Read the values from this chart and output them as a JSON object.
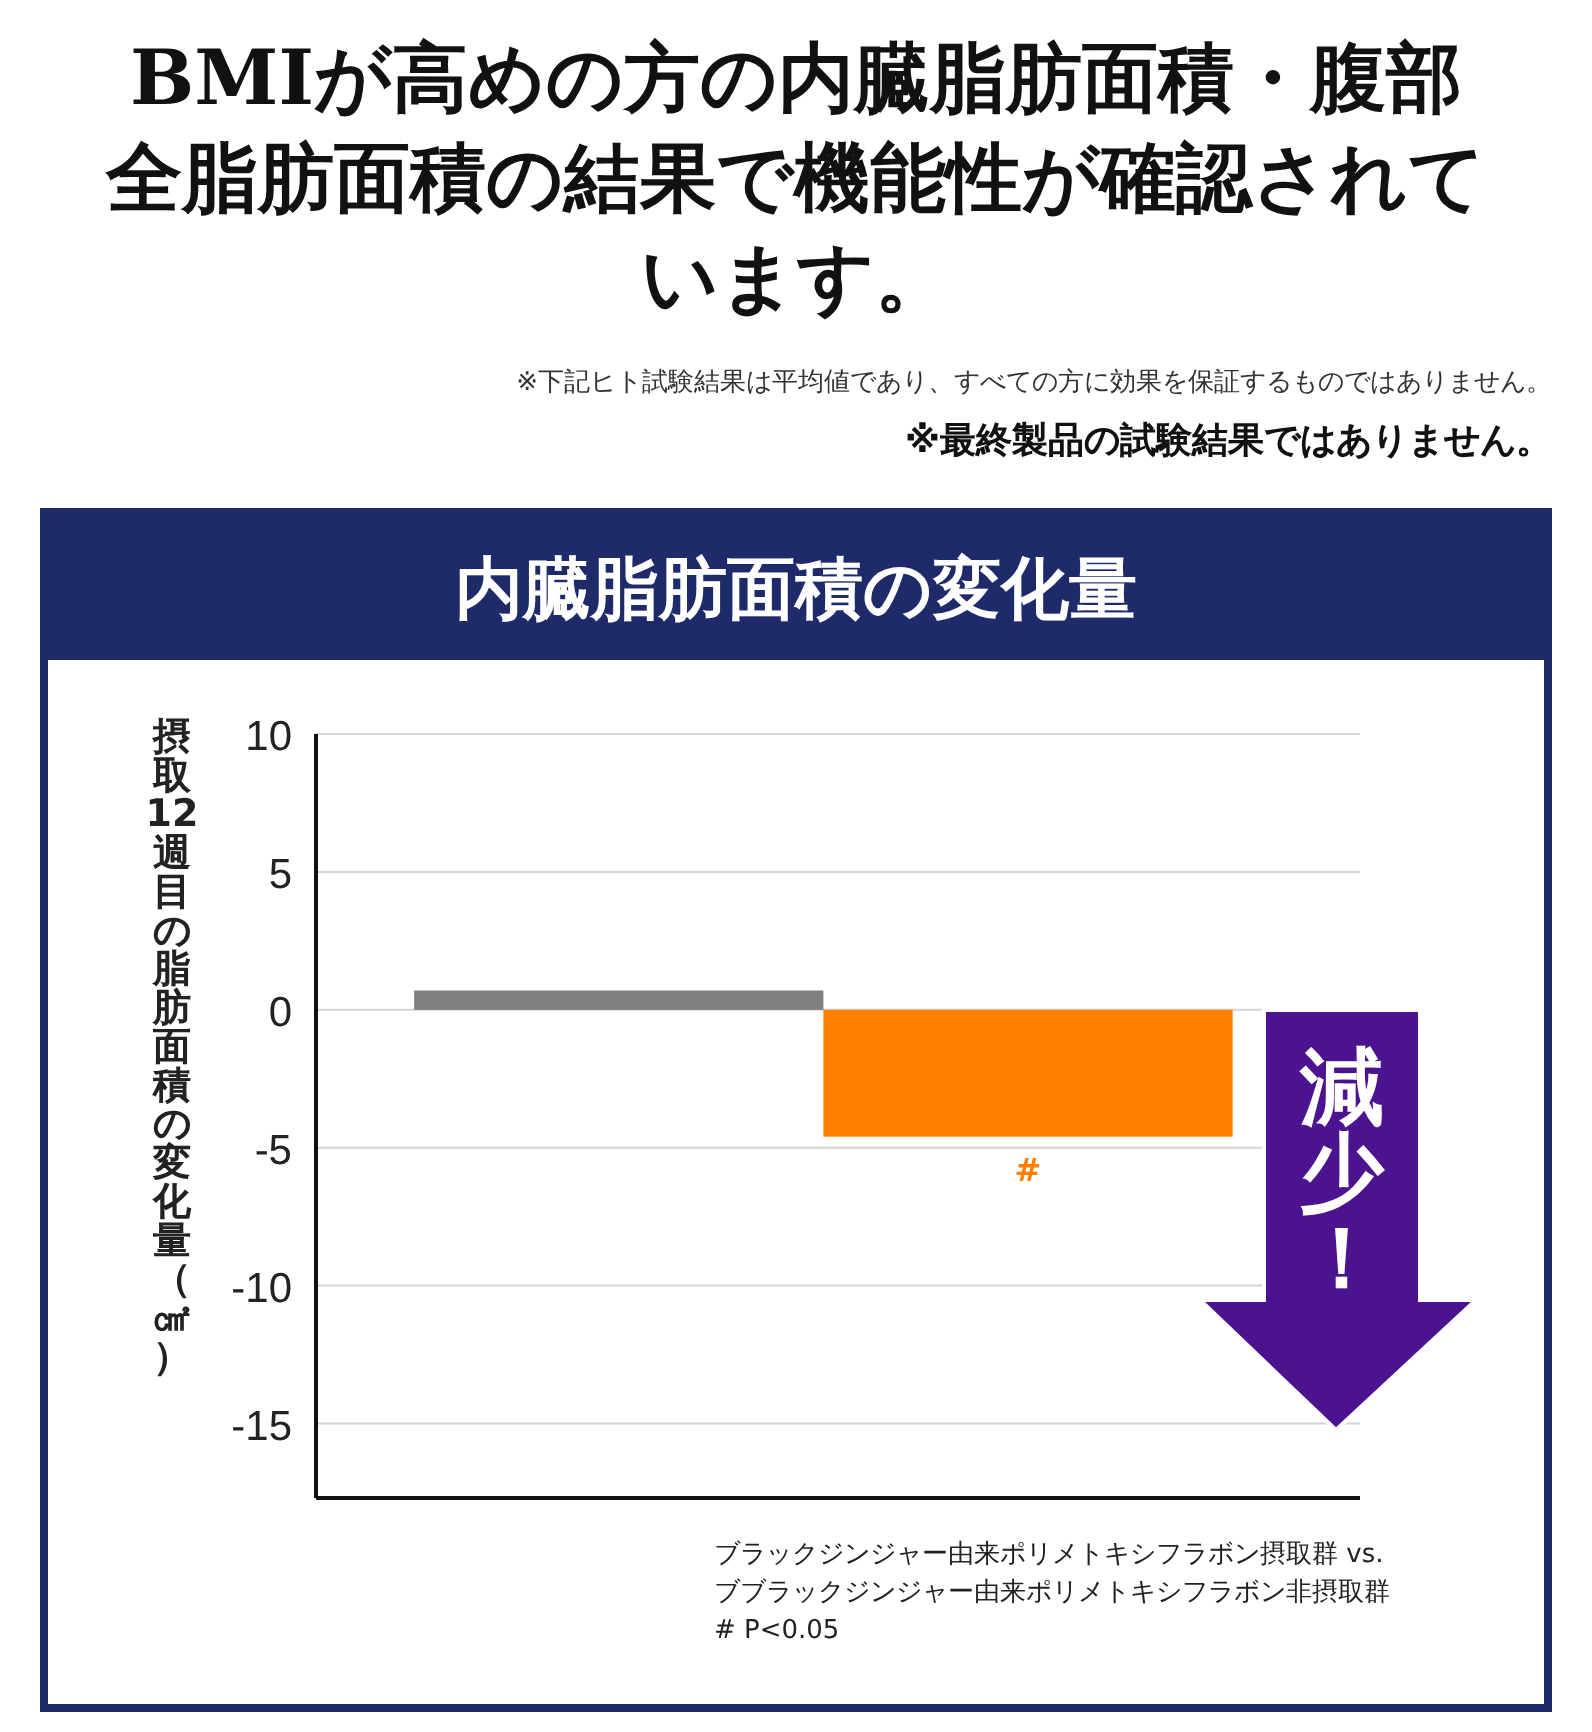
{
  "chart_data": {
    "type": "bar",
    "title": "BMIが高めの方の内臓脂肪面積・腹部全脂肪面積の結果で機能性が確認されています。",
    "subtitle": "内臓脂肪面積の変化量",
    "ylabel": "摂取12週目の脂肪面積の変化量（㎠）",
    "categories": [
      null,
      null
    ],
    "values": [
      0.7,
      -4.6
    ],
    "colors": [
      "#808080",
      "#ff8000"
    ],
    "ylim": [
      -17.7,
      10
    ],
    "yticks": [
      -15,
      -10,
      -5,
      0,
      5,
      10
    ],
    "grid": "y",
    "annotations": [
      "※下記ヒト試験結果は平均値であり、すべての方に効果を保証するものではありません。",
      "※最終製品の試験結果ではありません。",
      {
        "text": "#",
        "y": -4.6
      },
      "減少！",
      "ブラックジンジャー由来ポリメトキシフラボン摂取群 vs.\nブブラックジンジャー由来ポリメトキシフラボン非摂取群\n# P<0.05"
    ]
  }
}
